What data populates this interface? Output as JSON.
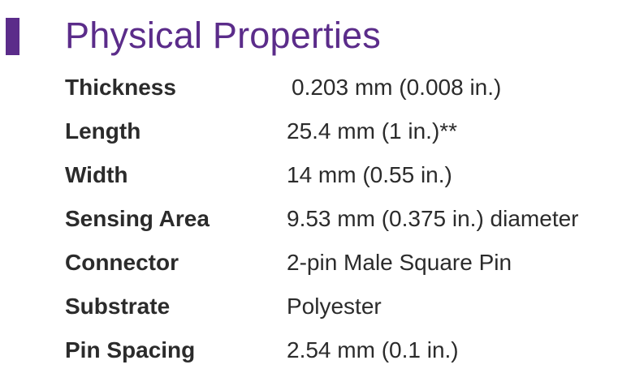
{
  "title": "Physical Properties",
  "colors": {
    "accent": "#5b2c8a",
    "text": "#2b2b2b"
  },
  "properties": [
    {
      "label": "Thickness",
      "value": "0.203 mm (0.008 in.)"
    },
    {
      "label": "Length",
      "value": "25.4 mm (1 in.)**"
    },
    {
      "label": "Width",
      "value": "14 mm (0.55 in.)"
    },
    {
      "label": "Sensing Area",
      "value": "9.53 mm (0.375 in.) diameter"
    },
    {
      "label": "Connector",
      "value": "2-pin Male Square Pin"
    },
    {
      "label": "Substrate",
      "value": "Polyester"
    },
    {
      "label": "Pin Spacing",
      "value": "2.54 mm (0.1 in.)"
    }
  ]
}
